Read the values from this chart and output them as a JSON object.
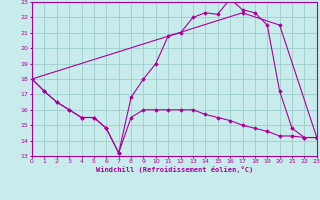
{
  "xlabel": "Windchill (Refroidissement éolien,°C)",
  "bg_color": "#c8ecec",
  "line_color": "#aa0099",
  "grid_color": "#9ecece",
  "xmin": 0,
  "xmax": 23,
  "ymin": 13,
  "ymax": 23,
  "line1_x": [
    0,
    1,
    2,
    3,
    4,
    5,
    6,
    7,
    8,
    9,
    10,
    11,
    12,
    13,
    14,
    15,
    16,
    17,
    18,
    19,
    20,
    21,
    22,
    23
  ],
  "line1_y": [
    18.0,
    17.2,
    16.5,
    16.0,
    15.5,
    15.5,
    14.8,
    13.2,
    16.8,
    18.0,
    19.0,
    20.8,
    21.0,
    22.0,
    22.3,
    22.2,
    23.2,
    22.5,
    22.3,
    21.5,
    17.2,
    14.8,
    14.2,
    14.2
  ],
  "line2_x": [
    0,
    1,
    2,
    3,
    4,
    5,
    6,
    7,
    8,
    9,
    10,
    11,
    12,
    13,
    14,
    15,
    16,
    17,
    18,
    19,
    20,
    21,
    22,
    23
  ],
  "line2_y": [
    18.0,
    17.2,
    16.5,
    16.0,
    15.5,
    15.5,
    14.8,
    13.2,
    15.5,
    16.0,
    16.0,
    16.0,
    16.0,
    16.0,
    15.7,
    15.5,
    15.3,
    15.0,
    14.8,
    14.6,
    14.3,
    14.3,
    14.2,
    14.2
  ],
  "line3_x": [
    0,
    17,
    20,
    23
  ],
  "line3_y": [
    18.0,
    22.3,
    21.5,
    14.2
  ]
}
